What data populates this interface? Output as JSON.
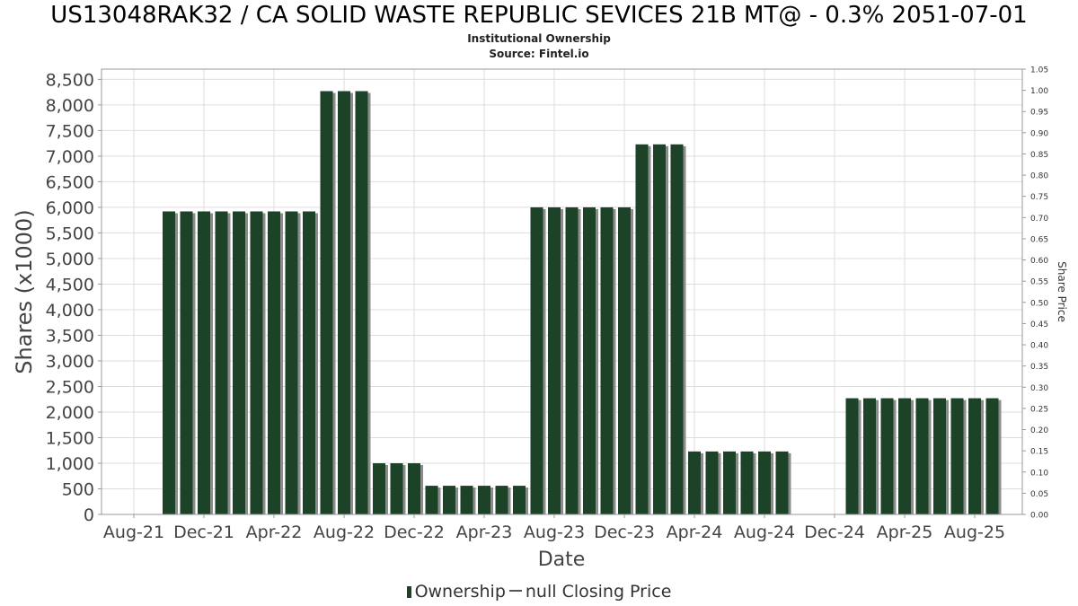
{
  "chart_data": {
    "type": "bar",
    "title": "US13048RAK32 / CA SOLID WASTE REPUBLIC SEVICES 21B MT@ - 0.3% 2051-07-01",
    "subtitle": "Institutional Ownership",
    "source": "Source: Fintel.io",
    "xlabel": "Date",
    "ylabel": "Shares (x1000)",
    "y2label": "Share Price",
    "ylim": [
      0,
      8700
    ],
    "y2lim": [
      0,
      1.05
    ],
    "yticks": [
      "0",
      "500",
      "1,000",
      "1,500",
      "2,000",
      "2,500",
      "3,000",
      "3,500",
      "4,000",
      "4,500",
      "5,000",
      "5,500",
      "6,000",
      "6,500",
      "7,000",
      "7,500",
      "8,000",
      "8,500"
    ],
    "y2ticks": [
      "0.00",
      "0.05",
      "0.10",
      "0.15",
      "0.20",
      "0.25",
      "0.30",
      "0.35",
      "0.40",
      "0.45",
      "0.50",
      "0.55",
      "0.60",
      "0.65",
      "0.70",
      "0.75",
      "0.80",
      "0.85",
      "0.90",
      "0.95",
      "1.00",
      "1.05"
    ],
    "xticks": [
      "Aug-21",
      "Dec-21",
      "Apr-22",
      "Aug-22",
      "Dec-22",
      "Apr-23",
      "Aug-23",
      "Dec-23",
      "Apr-24",
      "Aug-24",
      "Dec-24",
      "Apr-25",
      "Aug-25"
    ],
    "grid": true,
    "legend_position": "bottom",
    "bar_color": "#1c4228",
    "series": [
      {
        "name": "Ownership",
        "values": [
          5920,
          5920,
          5920,
          5920,
          5920,
          5920,
          5920,
          5920,
          5920,
          8270,
          8270,
          8270,
          1000,
          1000,
          1000,
          560,
          560,
          560,
          560,
          560,
          560,
          6000,
          6000,
          6000,
          6000,
          6000,
          6000,
          7230,
          7230,
          7230,
          1230,
          1230,
          1230,
          1230,
          1230,
          1230,
          null,
          null,
          null,
          2270,
          2270,
          2270,
          2270,
          2270,
          2270,
          2270,
          2270,
          2270
        ]
      },
      {
        "name": "null Closing Price",
        "values": []
      }
    ]
  }
}
